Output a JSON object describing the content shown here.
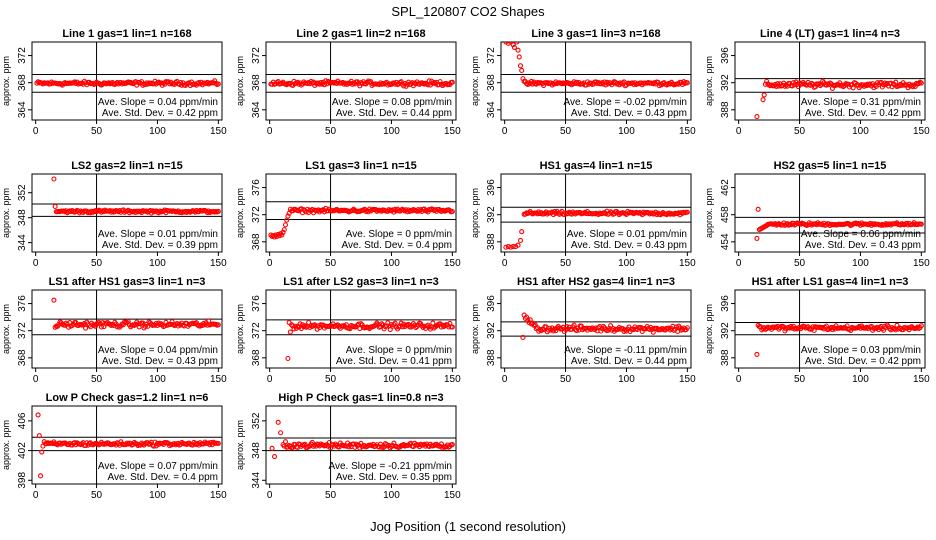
{
  "figure": {
    "title": "SPL_120807  CO2 Shapes",
    "xlabel": "Jog Position (1 second resolution)"
  },
  "chart_data": [
    {
      "type": "scatter",
      "title": "Line 1 gas=1 lin=1 n=168",
      "xlabel": "",
      "ylabel": "approx. ppm",
      "xlim": [
        -3,
        153
      ],
      "ylim": [
        362.5,
        374
      ],
      "xticks": [
        0,
        50,
        100,
        150
      ],
      "yticks": [
        364,
        368,
        372
      ],
      "hlines": [
        369.2,
        366.6
      ],
      "vline": 50,
      "annotations": [
        "Ave. Slope = 0.04  ppm/min",
        "Ave. Std. Dev. = 0.42  ppm"
      ],
      "series": [
        {
          "x_range": [
            1,
            150
          ],
          "level": 367.9,
          "noise": 0.2,
          "start": [],
          "color": "#ff0000"
        }
      ]
    },
    {
      "type": "scatter",
      "title": "Line 2 gas=1 lin=2 n=168",
      "xlabel": "",
      "ylabel": "approx. ppm",
      "xlim": [
        -3,
        153
      ],
      "ylim": [
        362.5,
        374
      ],
      "xticks": [
        0,
        50,
        100,
        150
      ],
      "yticks": [
        364,
        368,
        372
      ],
      "hlines": [
        369.2,
        366.6
      ],
      "vline": 50,
      "annotations": [
        "Ave. Slope = 0.08  ppm/min",
        "Ave. Std. Dev. = 0.44  ppm"
      ],
      "series": [
        {
          "x_range": [
            1,
            150
          ],
          "level": 367.9,
          "noise": 0.22,
          "start": [],
          "color": "#ff0000"
        }
      ]
    },
    {
      "type": "scatter",
      "title": "Line 3 gas=1 lin=3 n=168",
      "xlabel": "",
      "ylabel": "approx. ppm",
      "xlim": [
        -3,
        153
      ],
      "ylim": [
        362.5,
        374
      ],
      "xticks": [
        0,
        50,
        100,
        150
      ],
      "yticks": [
        364,
        368,
        372
      ],
      "hlines": [
        369.2,
        366.6
      ],
      "vline": 50,
      "annotations": [
        "Ave. Slope = -0.02  ppm/min",
        "Ave. Std. Dev. = 0.43  ppm"
      ],
      "series": [
        {
          "x_range": [
            16,
            150
          ],
          "level": 367.9,
          "noise": 0.2,
          "start": [
            [
              1,
              374.0
            ],
            [
              3,
              373.8
            ],
            [
              5,
              374.0
            ],
            [
              7,
              373.6
            ],
            [
              8,
              373.2
            ],
            [
              10,
              374.0
            ],
            [
              11,
              372.8
            ],
            [
              12,
              371.8
            ],
            [
              13,
              370.5
            ],
            [
              14,
              369.8
            ],
            [
              15,
              368.6
            ]
          ],
          "color": "#ff0000"
        }
      ]
    },
    {
      "type": "scatter",
      "title": "Line 4 (LT) gas=1 lin=4 n=3",
      "xlabel": "",
      "ylabel": "approx. ppm",
      "xlim": [
        -3,
        153
      ],
      "ylim": [
        386.5,
        398
      ],
      "xticks": [
        0,
        50,
        100,
        150
      ],
      "yticks": [
        388,
        392,
        396
      ],
      "hlines": [
        392.6,
        390.6
      ],
      "vline": 50,
      "annotations": [
        "Ave. Slope = 0.31  ppm/min",
        "Ave. Std. Dev. = 0.42  ppm"
      ],
      "series": [
        {
          "x_range": [
            22,
            150
          ],
          "level": 391.7,
          "noise": 0.3,
          "start": [
            [
              15,
              387.0
            ],
            [
              20,
              389.5
            ],
            [
              21,
              390.2
            ]
          ],
          "color": "#ff0000"
        }
      ]
    },
    {
      "type": "scatter",
      "title": "LS2 gas=2 lin=1 n=15",
      "xlabel": "",
      "ylabel": "approx. ppm",
      "xlim": [
        -3,
        153
      ],
      "ylim": [
        342.5,
        355
      ],
      "xticks": [
        0,
        50,
        100,
        150
      ],
      "yticks": [
        344,
        348,
        352
      ],
      "hlines": [
        350.2,
        348.2
      ],
      "vline": 50,
      "annotations": [
        "Ave. Slope = 0.01  ppm/min",
        "Ave. Std. Dev. = 0.39  ppm"
      ],
      "series": [
        {
          "x_range": [
            17,
            150
          ],
          "level": 349.0,
          "noise": 0.15,
          "start": [
            [
              15,
              354.2
            ],
            [
              16,
              349.8
            ]
          ],
          "color": "#ff0000"
        }
      ]
    },
    {
      "type": "scatter",
      "title": "LS1 gas=3 lin=1 n=15",
      "xlabel": "",
      "ylabel": "approx. ppm",
      "xlim": [
        -3,
        153
      ],
      "ylim": [
        366.5,
        378
      ],
      "xticks": [
        0,
        50,
        100,
        150
      ],
      "yticks": [
        368,
        372,
        376
      ],
      "hlines": [
        373.9,
        371.3
      ],
      "vline": 50,
      "annotations": [
        "Ave. Slope = 0  ppm/min",
        "Ave. Std. Dev. = 0.4  ppm"
      ],
      "series": [
        {
          "x_range": [
            17,
            150
          ],
          "level": 372.6,
          "noise": 0.18,
          "start": [
            [
              1,
              369.0
            ],
            [
              2,
              368.8
            ],
            [
              3,
              368.9
            ],
            [
              4,
              368.7
            ],
            [
              5,
              369.0
            ],
            [
              6,
              368.8
            ],
            [
              7,
              369.1
            ],
            [
              8,
              368.9
            ],
            [
              9,
              369.2
            ],
            [
              10,
              369.0
            ],
            [
              11,
              369.4
            ],
            [
              12,
              369.8
            ],
            [
              13,
              370.5
            ],
            [
              14,
              371.2
            ],
            [
              15,
              371.8
            ],
            [
              16,
              372.2
            ]
          ],
          "color": "#ff0000"
        }
      ]
    },
    {
      "type": "scatter",
      "title": "HS1 gas=4 lin=1 n=15",
      "xlabel": "",
      "ylabel": "approx. ppm",
      "xlim": [
        -3,
        153
      ],
      "ylim": [
        386.5,
        398
      ],
      "xticks": [
        0,
        50,
        100,
        150
      ],
      "yticks": [
        388,
        392,
        396
      ],
      "hlines": [
        393.1,
        390.9
      ],
      "vline": 50,
      "annotations": [
        "Ave. Slope = 0.01  ppm/min",
        "Ave. Std. Dev. = 0.43  ppm"
      ],
      "series": [
        {
          "x_range": [
            16,
            150
          ],
          "level": 392.2,
          "noise": 0.18,
          "start": [
            [
              1,
              387.2
            ],
            [
              3,
              387.3
            ],
            [
              5,
              387.2
            ],
            [
              7,
              387.3
            ],
            [
              9,
              387.3
            ],
            [
              11,
              387.5
            ],
            [
              13,
              388.2
            ],
            [
              14,
              389.5
            ]
          ],
          "color": "#ff0000"
        }
      ]
    },
    {
      "type": "scatter",
      "title": "HS2 gas=5 lin=1 n=15",
      "xlabel": "",
      "ylabel": "approx. ppm",
      "xlim": [
        -3,
        153
      ],
      "ylim": [
        452.5,
        464
      ],
      "xticks": [
        0,
        50,
        100,
        150
      ],
      "yticks": [
        454,
        458,
        462
      ],
      "hlines": [
        457.6,
        455.3
      ],
      "vline": 50,
      "annotations": [
        "Ave. Slope = 0.06  ppm/min",
        "Ave. Std. Dev. = 0.43  ppm"
      ],
      "series": [
        {
          "x_range": [
            24,
            150
          ],
          "level": 456.6,
          "noise": 0.15,
          "start": [
            [
              15,
              454.5
            ],
            [
              16,
              458.8
            ],
            [
              17,
              455.8
            ],
            [
              18,
              455.9
            ],
            [
              19,
              456.0
            ],
            [
              20,
              456.1
            ],
            [
              21,
              456.2
            ],
            [
              22,
              456.3
            ],
            [
              23,
              456.4
            ]
          ],
          "color": "#ff0000"
        }
      ]
    },
    {
      "type": "scatter",
      "title": "LS1 after HS1 gas=3 lin=1 n=3",
      "xlabel": "",
      "ylabel": "approx. ppm",
      "xlim": [
        -3,
        153
      ],
      "ylim": [
        366.5,
        378
      ],
      "xticks": [
        0,
        50,
        100,
        150
      ],
      "yticks": [
        368,
        372,
        376
      ],
      "hlines": [
        373.7,
        371.4
      ],
      "vline": 50,
      "annotations": [
        "Ave. Slope = 0.04  ppm/min",
        "Ave. Std. Dev. = 0.43  ppm"
      ],
      "series": [
        {
          "x_range": [
            17,
            150
          ],
          "level": 372.9,
          "noise": 0.3,
          "start": [
            [
              15,
              376.5
            ],
            [
              16,
              372.5
            ]
          ],
          "color": "#ff0000"
        }
      ]
    },
    {
      "type": "scatter",
      "title": "LS1 after LS2 gas=3 lin=1 n=3",
      "xlabel": "",
      "ylabel": "approx. ppm",
      "xlim": [
        -3,
        153
      ],
      "ylim": [
        366.5,
        378
      ],
      "xticks": [
        0,
        50,
        100,
        150
      ],
      "yticks": [
        368,
        372,
        376
      ],
      "hlines": [
        373.6,
        371.4
      ],
      "vline": 50,
      "annotations": [
        "Ave. Slope = 0  ppm/min",
        "Ave. Std. Dev. = 0.41  ppm"
      ],
      "series": [
        {
          "x_range": [
            18,
            150
          ],
          "level": 372.7,
          "noise": 0.3,
          "start": [
            [
              15,
              367.9
            ],
            [
              16,
              373.2
            ],
            [
              17,
              371.8
            ]
          ],
          "color": "#ff0000"
        }
      ]
    },
    {
      "type": "scatter",
      "title": "HS1 after HS2 gas=4 lin=1 n=3",
      "xlabel": "",
      "ylabel": "approx. ppm",
      "xlim": [
        -3,
        153
      ],
      "ylim": [
        386.5,
        398
      ],
      "xticks": [
        0,
        50,
        100,
        150
      ],
      "yticks": [
        388,
        392,
        396
      ],
      "hlines": [
        393.3,
        391.2
      ],
      "vline": 50,
      "annotations": [
        "Ave. Slope = -0.11  ppm/min",
        "Ave. Std. Dev. = 0.44  ppm"
      ],
      "series": [
        {
          "x_range": [
            26,
            150
          ],
          "level": 392.3,
          "noise": 0.3,
          "start": [
            [
              15,
              391.0
            ],
            [
              16,
              394.3
            ],
            [
              17,
              393.8
            ],
            [
              18,
              394.0
            ],
            [
              19,
              393.5
            ],
            [
              20,
              393.2
            ],
            [
              21,
              393.6
            ],
            [
              22,
              393.0
            ],
            [
              23,
              393.1
            ],
            [
              24,
              392.8
            ],
            [
              25,
              392.9
            ]
          ],
          "color": "#ff0000"
        }
      ]
    },
    {
      "type": "scatter",
      "title": "HS1 after LS1 gas=4 lin=1 n=3",
      "xlabel": "",
      "ylabel": "approx. ppm",
      "xlim": [
        -3,
        153
      ],
      "ylim": [
        386.5,
        398
      ],
      "xticks": [
        0,
        50,
        100,
        150
      ],
      "yticks": [
        388,
        392,
        396
      ],
      "hlines": [
        393.2,
        391.4
      ],
      "vline": 50,
      "annotations": [
        "Ave. Slope = 0.03  ppm/min",
        "Ave. Std. Dev. = 0.42  ppm"
      ],
      "series": [
        {
          "x_range": [
            18,
            150
          ],
          "level": 392.4,
          "noise": 0.25,
          "start": [
            [
              15,
              388.5
            ],
            [
              16,
              392.8
            ],
            [
              17,
              392.6
            ]
          ],
          "color": "#ff0000"
        }
      ]
    },
    {
      "type": "scatter",
      "title": "Low P Check gas=1.2 lin=1 n=6",
      "xlabel": "",
      "ylabel": "approx. ppm",
      "xlim": [
        -3,
        153
      ],
      "ylim": [
        397.5,
        408
      ],
      "xticks": [
        0,
        50,
        100,
        150
      ],
      "yticks": [
        398,
        402,
        406
      ],
      "hlines": [
        403.8,
        402.0
      ],
      "vline": 50,
      "annotations": [
        "Ave. Slope = 0.07  ppm/min",
        "Ave. Std. Dev. = 0.4  ppm"
      ],
      "series": [
        {
          "x_range": [
            8,
            150
          ],
          "level": 402.9,
          "noise": 0.18,
          "start": [
            [
              2,
              406.8
            ],
            [
              3,
              404.0
            ],
            [
              4,
              398.6
            ],
            [
              5,
              401.8
            ],
            [
              6,
              402.6
            ],
            [
              7,
              403.2
            ]
          ],
          "color": "#ff0000"
        }
      ]
    },
    {
      "type": "scatter",
      "title": "High P Check gas=1 lin=0.8 n=3",
      "xlabel": "",
      "ylabel": "approx. ppm",
      "xlim": [
        -3,
        153
      ],
      "ylim": [
        343.5,
        354
      ],
      "xticks": [
        0,
        50,
        100,
        150
      ],
      "yticks": [
        344,
        348,
        352
      ],
      "hlines": [
        349.7,
        348.0
      ],
      "vline": 50,
      "annotations": [
        "Ave. Slope = -0.21  ppm/min",
        "Ave. Std. Dev. = 0.35  ppm"
      ],
      "series": [
        {
          "x_range": [
            14,
            150
          ],
          "level": 348.7,
          "noise": 0.25,
          "start": [
            [
              2,
              348.3
            ],
            [
              4,
              347.2
            ],
            [
              7,
              351.8
            ],
            [
              9,
              350.4
            ],
            [
              11,
              348.8
            ],
            [
              12,
              348.6
            ],
            [
              13,
              349.2
            ]
          ],
          "color": "#ff0000"
        }
      ]
    }
  ]
}
